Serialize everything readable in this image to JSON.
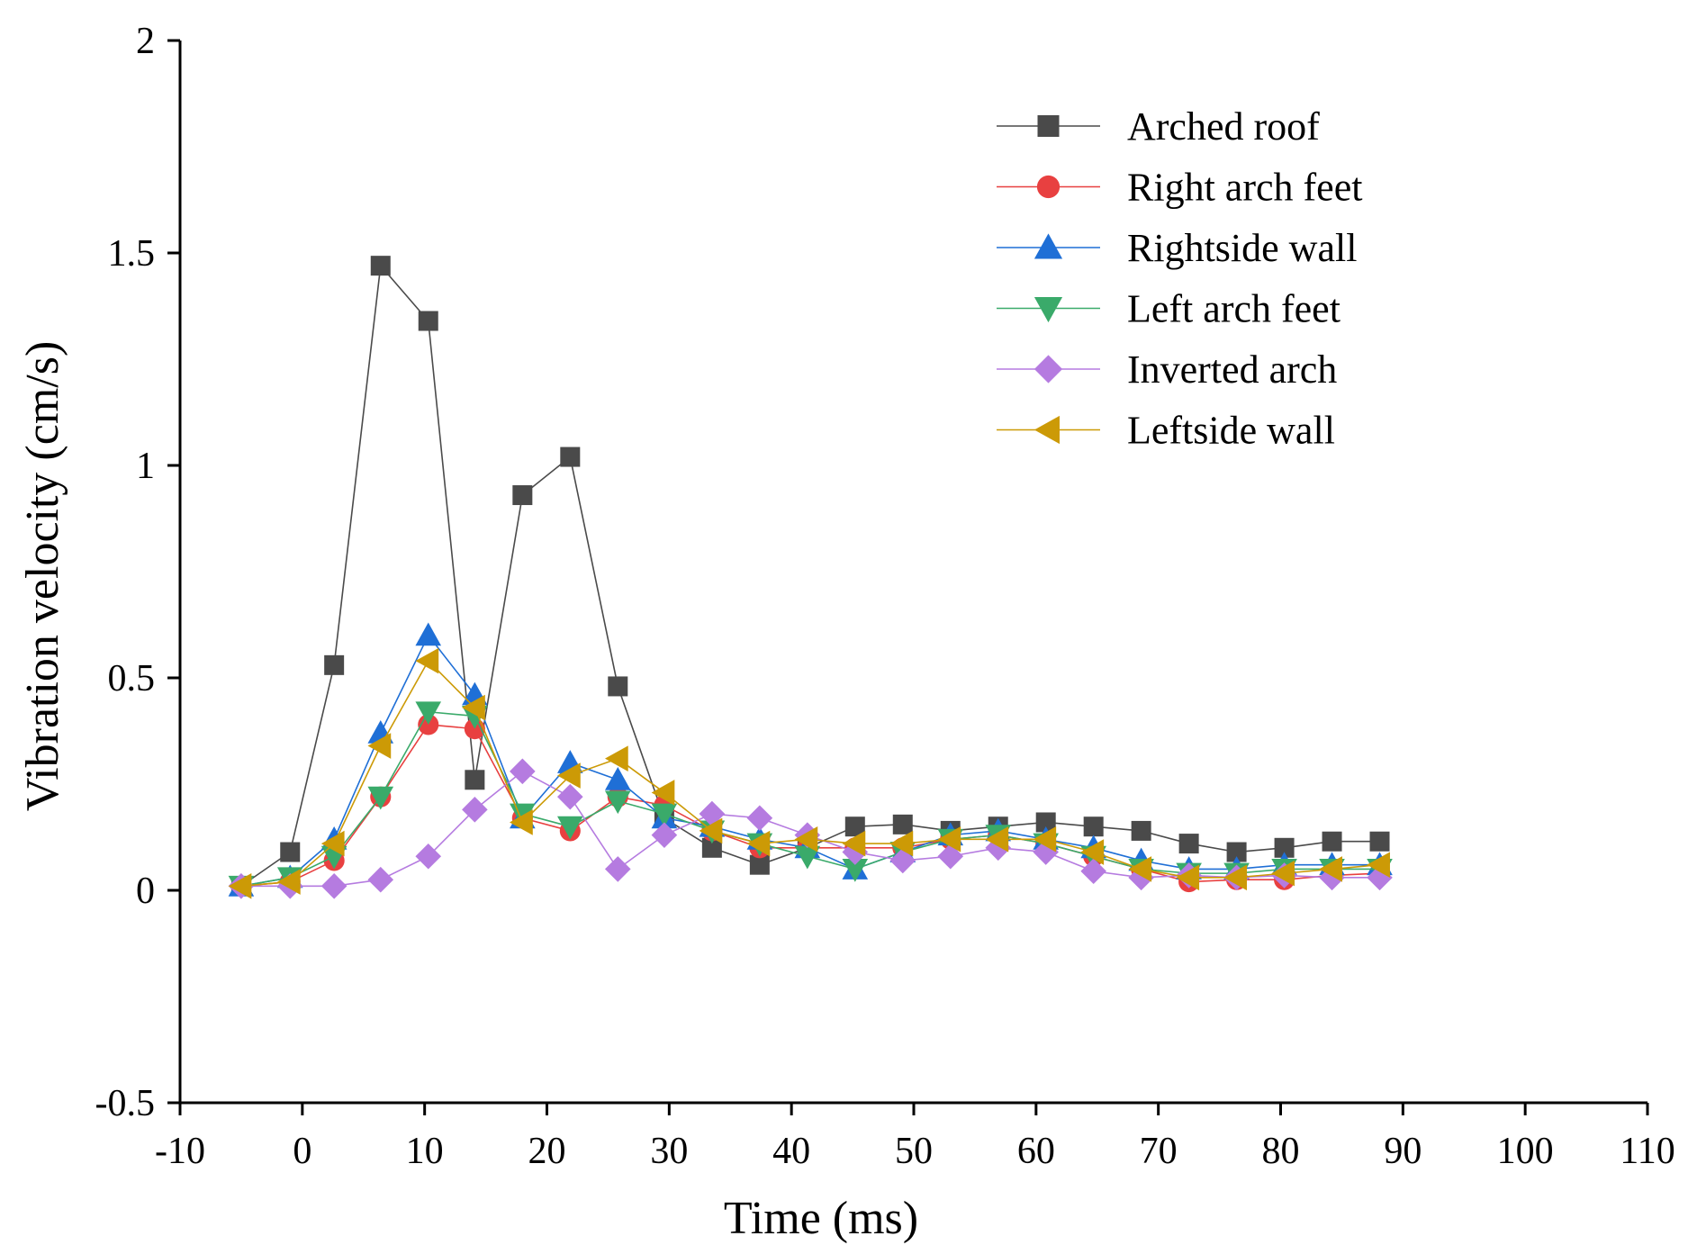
{
  "chart_data": {
    "type": "line",
    "title": "",
    "xlabel": "Time (ms)",
    "ylabel": "Vibration velocity (cm/s)",
    "xlim": [
      -10,
      110
    ],
    "ylim": [
      -0.5,
      2
    ],
    "x_ticks": [
      -10,
      0,
      10,
      20,
      30,
      40,
      50,
      60,
      70,
      80,
      90,
      100,
      110
    ],
    "y_ticks": [
      -0.5,
      0,
      0.5,
      1,
      1.5,
      2
    ],
    "x_tick_labels": [
      "-10",
      "0",
      "10",
      "20",
      "30",
      "40",
      "50",
      "60",
      "70",
      "80",
      "90",
      "100",
      "110"
    ],
    "y_tick_labels": [
      "-0.5",
      "0",
      "0.5",
      "1",
      "1.5",
      "2"
    ],
    "legend_position": "top-right",
    "grid": false,
    "x": [
      -5,
      -1,
      2.6,
      6.4,
      10.3,
      14.1,
      18,
      21.9,
      25.8,
      29.6,
      33.5,
      37.4,
      41.3,
      45.2,
      49.1,
      53,
      56.9,
      60.8,
      64.7,
      68.6,
      72.5,
      76.4,
      80.3,
      84.2,
      88.1
    ],
    "series": [
      {
        "name": "Arched roof",
        "color": "#4a4a4a",
        "marker": "square",
        "values": [
          0.01,
          0.09,
          0.53,
          1.47,
          1.34,
          0.26,
          0.93,
          1.02,
          0.48,
          0.17,
          0.1,
          0.06,
          0.1,
          0.15,
          0.155,
          0.14,
          0.15,
          0.16,
          0.15,
          0.14,
          0.11,
          0.09,
          0.1,
          0.115,
          0.115
        ]
      },
      {
        "name": "Right arch feet",
        "color": "#e84040",
        "marker": "circle",
        "values": [
          0.01,
          0.02,
          0.07,
          0.22,
          0.39,
          0.38,
          0.17,
          0.14,
          0.22,
          0.2,
          0.14,
          0.1,
          0.1,
          0.1,
          0.1,
          0.12,
          0.13,
          0.11,
          0.08,
          0.05,
          0.02,
          0.025,
          0.025,
          0.035,
          0.04
        ]
      },
      {
        "name": "Rightside wall",
        "color": "#1f6fd6",
        "marker": "triangle-up",
        "values": [
          0.01,
          0.03,
          0.12,
          0.37,
          0.6,
          0.46,
          0.17,
          0.3,
          0.26,
          0.17,
          0.15,
          0.12,
          0.1,
          0.05,
          0.09,
          0.13,
          0.14,
          0.12,
          0.1,
          0.07,
          0.05,
          0.05,
          0.06,
          0.06,
          0.06
        ]
      },
      {
        "name": "Left arch feet",
        "color": "#3aaa6a",
        "marker": "triangle-down",
        "values": [
          0.01,
          0.03,
          0.08,
          0.22,
          0.42,
          0.41,
          0.18,
          0.15,
          0.21,
          0.18,
          0.14,
          0.11,
          0.08,
          0.05,
          0.09,
          0.12,
          0.13,
          0.11,
          0.08,
          0.05,
          0.04,
          0.04,
          0.05,
          0.05,
          0.05
        ]
      },
      {
        "name": "Inverted arch",
        "color": "#b57be0",
        "marker": "diamond",
        "values": [
          0.01,
          0.01,
          0.01,
          0.025,
          0.08,
          0.19,
          0.28,
          0.22,
          0.05,
          0.13,
          0.18,
          0.17,
          0.13,
          0.09,
          0.07,
          0.08,
          0.1,
          0.09,
          0.045,
          0.03,
          0.035,
          0.03,
          0.035,
          0.03,
          0.03
        ]
      },
      {
        "name": "Leftside wall",
        "color": "#cc9a06",
        "marker": "triangle-left",
        "values": [
          0.01,
          0.02,
          0.11,
          0.34,
          0.54,
          0.43,
          0.16,
          0.27,
          0.31,
          0.23,
          0.14,
          0.11,
          0.12,
          0.11,
          0.11,
          0.12,
          0.12,
          0.12,
          0.09,
          0.05,
          0.03,
          0.03,
          0.04,
          0.05,
          0.06
        ]
      }
    ]
  }
}
